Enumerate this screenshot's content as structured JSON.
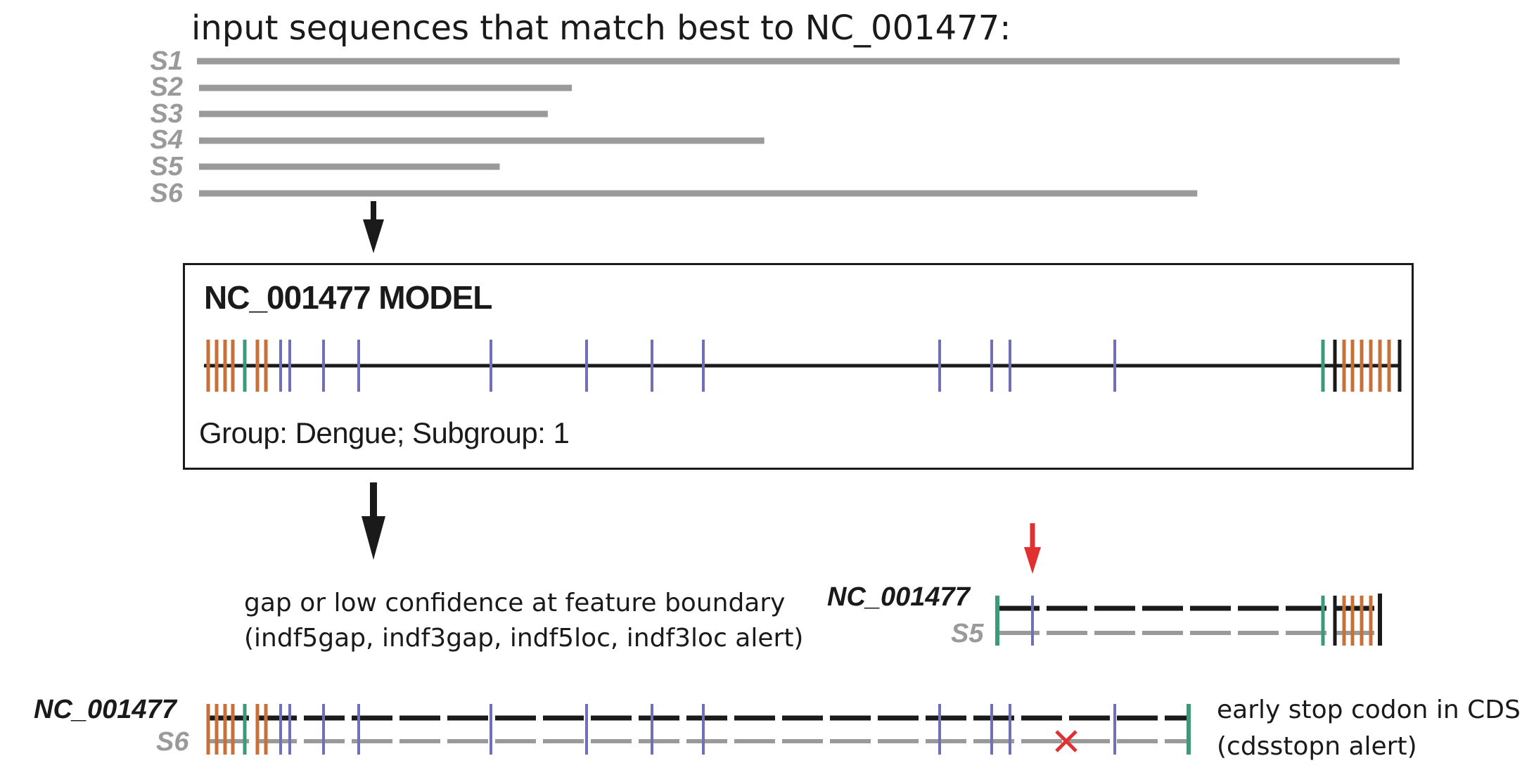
{
  "heading": "input sequences that match best to NC_001477:",
  "sequences": [
    {
      "label": "S1",
      "length_fraction": 1.0
    },
    {
      "label": "S2",
      "length_fraction": 0.31
    },
    {
      "label": "S3",
      "length_fraction": 0.29
    },
    {
      "label": "S4",
      "length_fraction": 0.47
    },
    {
      "label": "S5",
      "length_fraction": 0.25
    },
    {
      "label": "S6",
      "length_fraction": 0.83
    }
  ],
  "model": {
    "title": "NC_001477 MODEL",
    "group_text": "Group: Dengue; Subgroup: 1"
  },
  "alignments": {
    "s5": {
      "ref_label": "NC_001477",
      "seq_label": "S5",
      "note_line1": "gap or low confidence at feature boundary",
      "note_line2": "(indf5gap, indf3gap, indf5loc, indf3loc alert)"
    },
    "s6": {
      "ref_label": "NC_001477",
      "seq_label": "S6",
      "note_line1": "early stop codon in CDS",
      "note_line2": "(cdsstopn alert)"
    }
  },
  "colors": {
    "sequence_bar": "#9a9a9a",
    "reference_line": "#1a1a1a",
    "orange_feature": "#c8703a",
    "green_feature": "#3a9a7a",
    "blue_feature": "#7070b8",
    "alert_marker": "#e03030",
    "arrow": "#1a1a1a"
  },
  "icons": {
    "down_arrow": "down-arrow-icon",
    "red_arrow": "red-down-arrow-icon",
    "stop_marker": "x-mark-icon"
  }
}
